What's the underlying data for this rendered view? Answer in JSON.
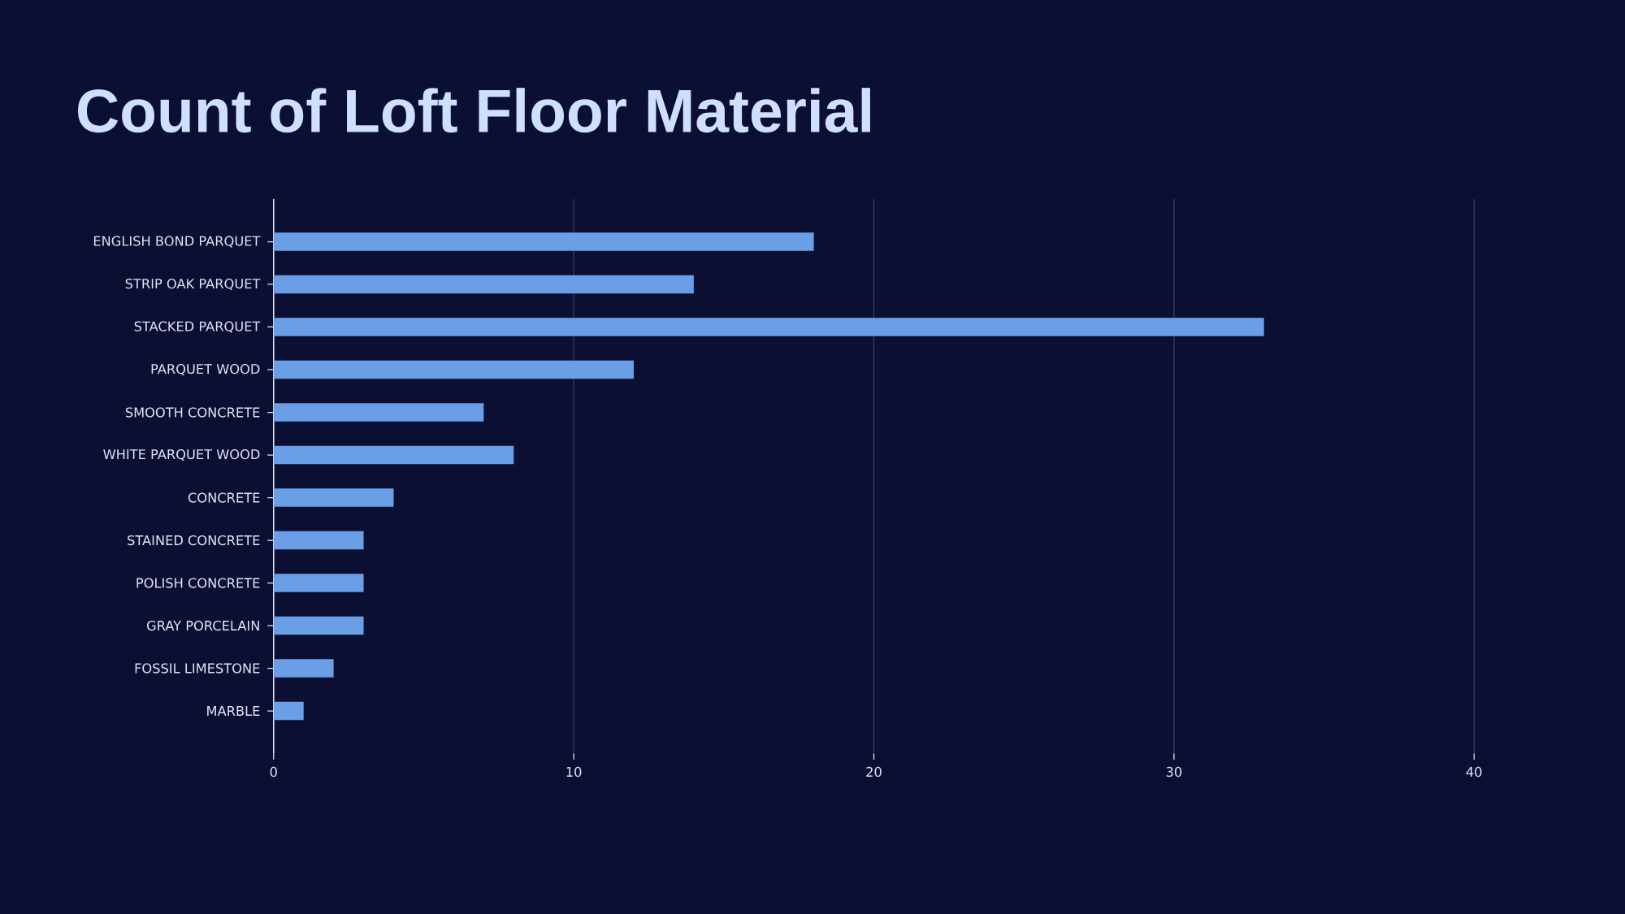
{
  "chart_data": {
    "type": "bar",
    "orientation": "horizontal",
    "title": "Count of Loft Floor Material",
    "categories": [
      "ENGLISH BOND PARQUET",
      "STRIP OAK PARQUET",
      "STACKED PARQUET",
      "PARQUET WOOD",
      "SMOOTH CONCRETE",
      "WHITE PARQUET WOOD",
      "CONCRETE",
      "STAINED CONCRETE",
      "POLISH CONCRETE",
      "GRAY PORCELAIN",
      "FOSSIL LIMESTONE",
      "MARBLE"
    ],
    "values": [
      18,
      14,
      33,
      12,
      7,
      8,
      4,
      3,
      3,
      3,
      2,
      1
    ],
    "color": "#6a9ee6",
    "xlim": [
      0,
      40
    ],
    "xticks": [
      0,
      10,
      20,
      30,
      40
    ],
    "grid": "x"
  }
}
